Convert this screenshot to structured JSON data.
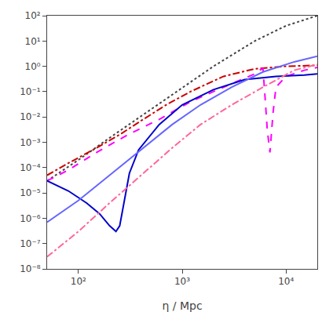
{
  "chart_data": {
    "type": "line",
    "xlabel": "η / Mpc",
    "log": true,
    "grid": false,
    "xlim": [
      50,
      20000
    ],
    "ylim": [
      1e-08,
      100.0
    ],
    "xticks": [
      {
        "value": 100,
        "label": "10²"
      },
      {
        "value": 1000,
        "label": "10³"
      },
      {
        "value": 10000,
        "label": "10⁴"
      }
    ],
    "yticks": [
      {
        "value": 1e-08,
        "label": "10⁻⁸"
      },
      {
        "value": 1e-07,
        "label": "10⁻⁷"
      },
      {
        "value": 1e-06,
        "label": "10⁻⁶"
      },
      {
        "value": 1e-05,
        "label": "10⁻⁵"
      },
      {
        "value": 0.0001,
        "label": "10⁻⁴"
      },
      {
        "value": 0.001,
        "label": "10⁻³"
      },
      {
        "value": 0.01,
        "label": "10⁻²"
      },
      {
        "value": 0.1,
        "label": "10⁻¹"
      },
      {
        "value": 1,
        "label": "10⁰"
      },
      {
        "value": 10,
        "label": "10¹"
      },
      {
        "value": 100,
        "label": "10²"
      }
    ],
    "series": [
      {
        "color": "#444444",
        "line_style": "dotted",
        "x": [
          50,
          100,
          200,
          500,
          1000,
          2000,
          5000,
          10000,
          20000
        ],
        "values": [
          3e-05,
          0.0002,
          0.0015,
          0.02,
          0.15,
          1.0,
          10.0,
          40.0,
          100.0
        ]
      },
      {
        "color": "#cc0000",
        "line_style": "dashdot",
        "x": [
          50,
          80,
          150,
          250,
          400,
          700,
          1200,
          2500,
          5000,
          10000,
          20000
        ],
        "values": [
          5e-05,
          0.00015,
          0.0006,
          0.002,
          0.007,
          0.03,
          0.1,
          0.4,
          0.8,
          1.0,
          1.1
        ]
      },
      {
        "color": "#ff00ff",
        "line_style": "dashed",
        "x": [
          50,
          80,
          150,
          300,
          600,
          1200,
          2500,
          4000,
          5000,
          5500,
          6000,
          6300,
          6600,
          7000,
          7500,
          8000,
          10000,
          15000,
          20000
        ],
        "values": [
          3e-05,
          8e-05,
          0.0004,
          0.002,
          0.008,
          0.04,
          0.15,
          0.35,
          0.5,
          0.7,
          0.8,
          0.05,
          0.003,
          0.0004,
          0.015,
          0.15,
          0.4,
          0.7,
          0.9
        ]
      },
      {
        "color": "#0000cc",
        "line_style": "solid",
        "x": [
          50,
          80,
          120,
          160,
          200,
          230,
          250,
          270,
          290,
          310,
          380,
          600,
          1000,
          2000,
          4000,
          8000,
          15000,
          20000
        ],
        "values": [
          3e-05,
          1.2e-05,
          4e-06,
          1.5e-06,
          5e-07,
          3e-07,
          5e-07,
          3e-06,
          1.5e-05,
          6e-05,
          0.0005,
          0.005,
          0.03,
          0.12,
          0.3,
          0.4,
          0.45,
          0.5
        ]
      },
      {
        "color": "#6666ff",
        "line_style": "solid",
        "x": [
          50,
          100,
          200,
          400,
          800,
          1500,
          3000,
          6000,
          12000,
          20000
        ],
        "values": [
          7e-07,
          5e-06,
          5e-05,
          0.0005,
          0.005,
          0.03,
          0.15,
          0.6,
          1.5,
          2.5
        ]
      },
      {
        "color": "#ff6699",
        "line_style": "dashdot",
        "x": [
          50,
          100,
          200,
          400,
          800,
          1500,
          3000,
          6000,
          12000,
          20000
        ],
        "values": [
          3e-08,
          3e-07,
          4e-06,
          5e-05,
          0.0006,
          0.005,
          0.03,
          0.15,
          0.7,
          1.2
        ]
      }
    ]
  }
}
